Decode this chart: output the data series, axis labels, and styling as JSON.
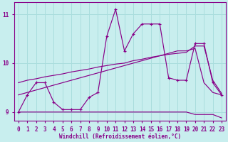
{
  "bg_color": "#c8eeee",
  "line_color": "#880088",
  "grid_color": "#aadddd",
  "xlim": [
    -0.5,
    23.5
  ],
  "ylim": [
    8.82,
    11.25
  ],
  "yticks": [
    9,
    10,
    11
  ],
  "xticks": [
    0,
    1,
    2,
    3,
    4,
    5,
    6,
    7,
    8,
    9,
    10,
    11,
    12,
    13,
    14,
    15,
    16,
    17,
    18,
    19,
    20,
    21,
    22,
    23
  ],
  "xlabel": "Windchill (Refroidissement éolien,°C)",
  "jagged_x": [
    0,
    1,
    2,
    3,
    4,
    5,
    6,
    7,
    8,
    9,
    10,
    11,
    12,
    13,
    14,
    15,
    16,
    17,
    18,
    19,
    20,
    21,
    22,
    23
  ],
  "jagged_y": [
    9.0,
    9.35,
    9.6,
    9.6,
    9.2,
    9.05,
    9.05,
    9.05,
    9.3,
    9.4,
    10.55,
    11.1,
    10.25,
    10.6,
    10.8,
    10.8,
    10.8,
    9.7,
    9.65,
    9.65,
    10.4,
    10.4,
    9.6,
    9.35
  ],
  "line_bottom_x": [
    0,
    1,
    2,
    3,
    4,
    5,
    6,
    7,
    8,
    9,
    10,
    11,
    12,
    13,
    14,
    15,
    16,
    17,
    18,
    19,
    20,
    21,
    22,
    23
  ],
  "line_bottom_y": [
    9.0,
    9.0,
    9.0,
    9.0,
    9.0,
    9.0,
    9.0,
    9.0,
    9.0,
    9.0,
    9.0,
    9.0,
    9.0,
    9.0,
    9.0,
    9.0,
    9.0,
    9.0,
    9.0,
    9.0,
    8.95,
    8.95,
    8.95,
    8.88
  ],
  "line_mid_x": [
    0,
    1,
    2,
    3,
    4,
    5,
    6,
    7,
    8,
    9,
    10,
    11,
    12,
    13,
    14,
    15,
    16,
    17,
    18,
    19,
    20,
    21,
    22,
    23
  ],
  "line_mid_y": [
    9.35,
    9.4,
    9.45,
    9.5,
    9.55,
    9.6,
    9.65,
    9.7,
    9.75,
    9.8,
    9.85,
    9.9,
    9.95,
    10.0,
    10.05,
    10.1,
    10.15,
    10.2,
    10.25,
    10.25,
    10.3,
    9.6,
    9.4,
    9.35
  ],
  "line_top_x": [
    0,
    1,
    2,
    3,
    4,
    5,
    6,
    7,
    8,
    9,
    10,
    11,
    12,
    13,
    14,
    15,
    16,
    17,
    18,
    19,
    20,
    21,
    22,
    23
  ],
  "line_top_y": [
    9.6,
    9.65,
    9.68,
    9.72,
    9.75,
    9.78,
    9.82,
    9.85,
    9.88,
    9.92,
    9.95,
    9.98,
    10.0,
    10.05,
    10.08,
    10.12,
    10.15,
    10.18,
    10.2,
    10.22,
    10.35,
    10.35,
    9.65,
    9.38
  ]
}
